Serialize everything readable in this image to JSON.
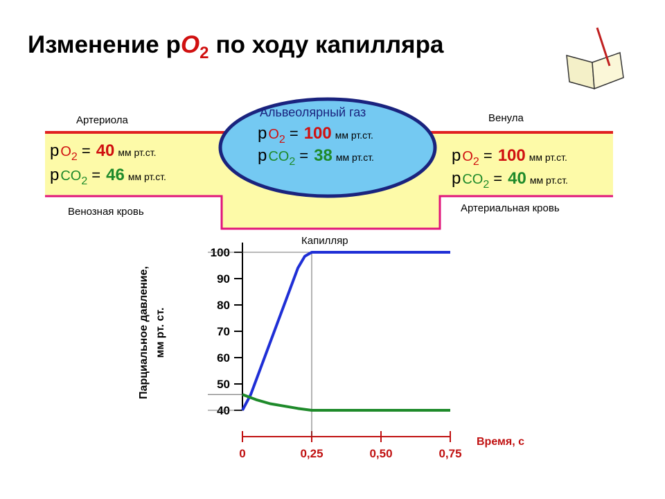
{
  "title": {
    "pre": "Изменение p",
    "gas": "O",
    "sub": "2",
    "post": "по ходу капилляра"
  },
  "diagram": {
    "arteriole": "Артериола",
    "venule": "Венула",
    "venous_blood": "Венозная кровь",
    "arterial_blood": "Артериальная кровь",
    "capillary": "Капилляр",
    "alveolar_gas": "Альвеолярный газ",
    "left": [
      {
        "p": "p",
        "gas": "O",
        "sub": "2",
        "eq": "=",
        "value": 40,
        "unit": "мм рт.ст."
      },
      {
        "p": "p",
        "gas": "CO",
        "sub": "2",
        "eq": "=",
        "value": 46,
        "unit": "мм рт.ст."
      }
    ],
    "center": [
      {
        "p": "p",
        "gas": "O",
        "sub": "2",
        "eq": "=",
        "value": 100,
        "unit": "мм рт.ст."
      },
      {
        "p": "p",
        "gas": "CO",
        "sub": "2",
        "eq": "=",
        "value": 38,
        "unit": "мм рт.ст."
      }
    ],
    "right": [
      {
        "p": "p",
        "gas": "O",
        "sub": "2",
        "eq": "=",
        "value": 100,
        "unit": "мм рт.ст."
      },
      {
        "p": "p",
        "gas": "CO",
        "sub": "2",
        "eq": "=",
        "value": 40,
        "unit": "мм рт.ст."
      }
    ]
  },
  "chart_data": {
    "type": "line",
    "y_label": [
      "Парциальное давление,",
      "мм рт. ст."
    ],
    "x_label": "Время, с",
    "series": [
      {
        "color": "#1f2fd6",
        "x": [
          0,
          0.03,
          0.2,
          0.225,
          0.25,
          0.75
        ],
        "values": [
          40,
          46,
          94,
          98.5,
          100,
          100
        ]
      },
      {
        "color": "#1e8a2a",
        "x": [
          0,
          0.05,
          0.1,
          0.2,
          0.25,
          0.75
        ],
        "values": [
          46,
          44,
          42.5,
          40.7,
          40,
          40
        ]
      }
    ],
    "xlim": [
      0,
      0.75
    ],
    "xticks": [
      0,
      {
        "value": 0.25,
        "label": "0,25"
      },
      {
        "value": 0.5,
        "label": "0,50"
      },
      {
        "value": 0.75,
        "label": "0,75"
      }
    ],
    "ylim": [
      30,
      100
    ],
    "yticks": [
      40,
      50,
      60,
      70,
      80,
      90,
      100
    ]
  }
}
